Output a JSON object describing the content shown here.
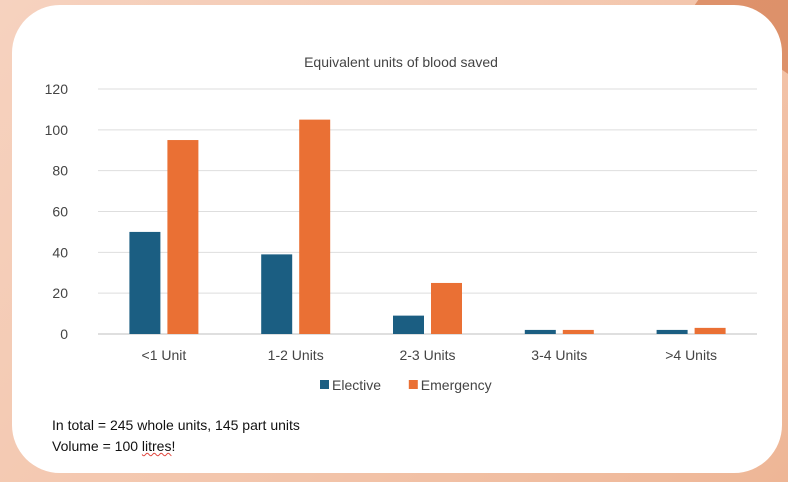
{
  "chart_data": {
    "type": "bar",
    "title": "Equivalent units of blood saved",
    "xlabel": "",
    "ylabel": "",
    "categories": [
      "<1 Unit",
      "1-2 Units",
      "2-3 Units",
      "3-4 Units",
      ">4 Units"
    ],
    "series": [
      {
        "name": "Elective",
        "values": [
          50,
          39,
          9,
          2,
          2
        ],
        "color": "#1b5e82"
      },
      {
        "name": "Emergency",
        "values": [
          95,
          105,
          25,
          2,
          3
        ],
        "color": "#ea7034"
      }
    ],
    "ylim": [
      0,
      120
    ],
    "yticks": [
      "0",
      "20",
      "40",
      "60",
      "80",
      "100",
      "120"
    ],
    "grid": true,
    "legend": "bottom"
  },
  "notes": {
    "line1": "In total = 245 whole units, 145 part units",
    "line2_prefix": "Volume = 100 ",
    "line2_underlined": "litres",
    "line2_suffix": "!"
  }
}
